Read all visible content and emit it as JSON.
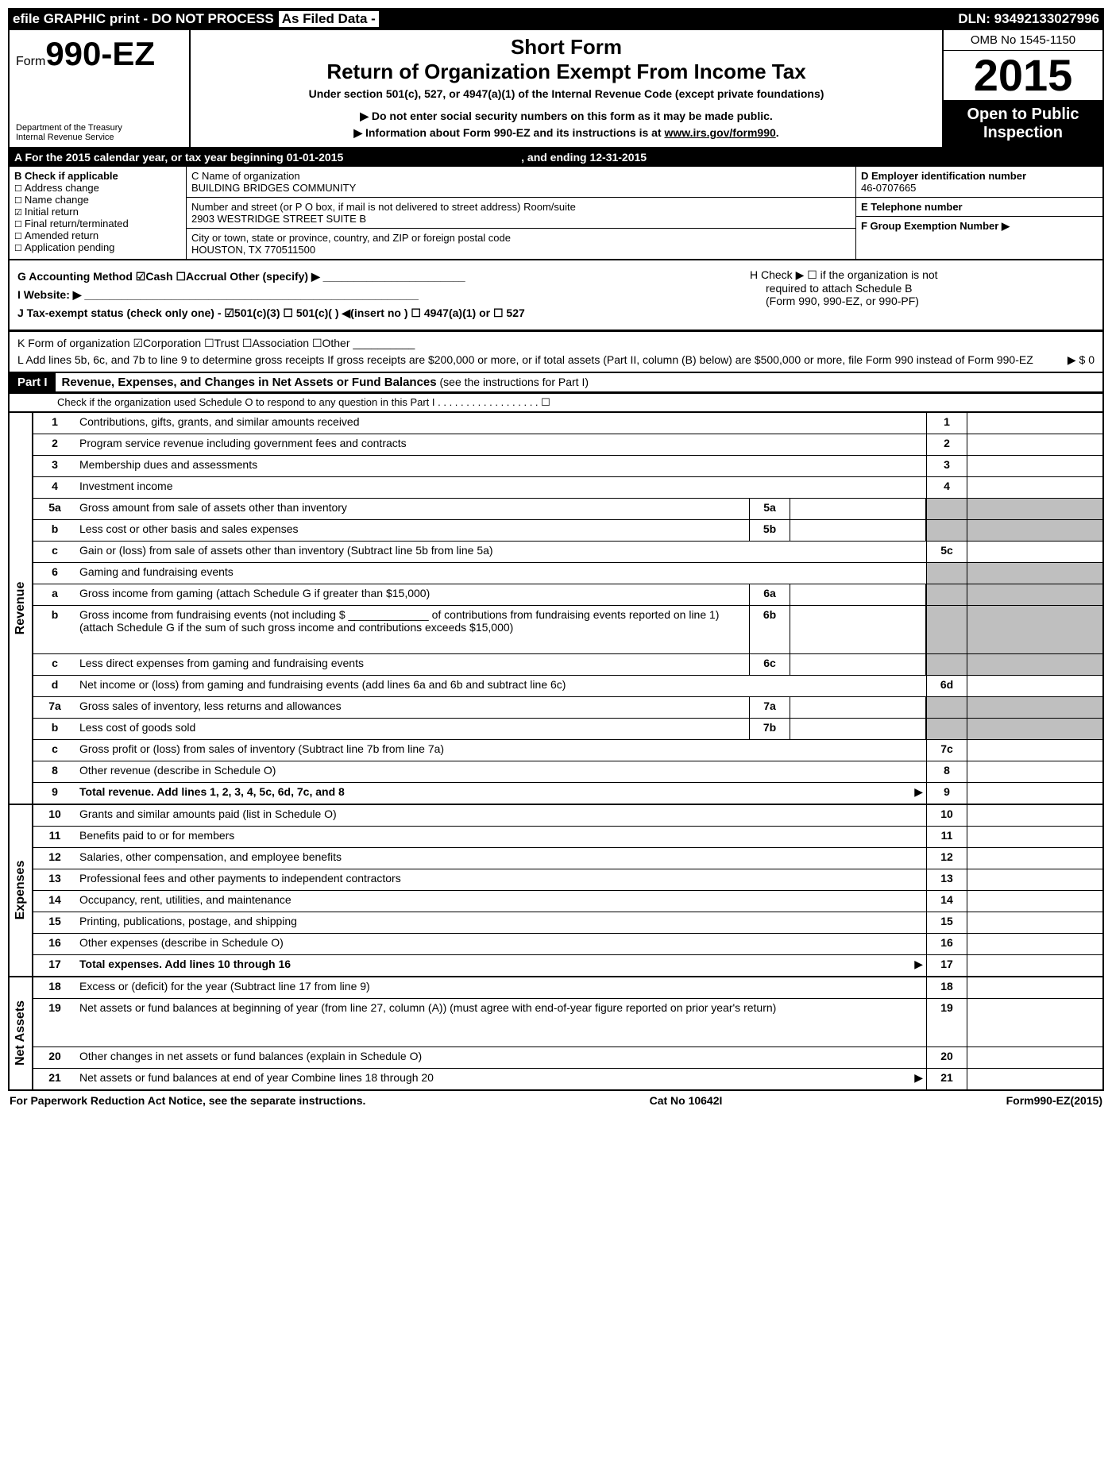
{
  "topbar": {
    "left1": "efile GRAPHIC print - DO NOT PROCESS",
    "left2": "As Filed Data -",
    "right": "DLN: 93492133027996"
  },
  "header": {
    "form_prefix": "Form",
    "form_no": "990-EZ",
    "dept1": "Department of the Treasury",
    "dept2": "Internal Revenue Service",
    "title1": "Short Form",
    "title2": "Return of Organization Exempt From Income Tax",
    "subtitle": "Under section 501(c), 527, or 4947(a)(1) of the Internal Revenue Code (except private foundations)",
    "warn1": "▶ Do not enter social security numbers on this form as it may be made public.",
    "warn2_pre": "▶ Information about Form 990-EZ and its instructions is at ",
    "warn2_link": "www.irs.gov/form990",
    "warn2_post": ".",
    "omb": "OMB No 1545-1150",
    "year": "2015",
    "inspect1": "Open to Public",
    "inspect2": "Inspection"
  },
  "lineA": {
    "text_a": "A  For the 2015 calendar year, or tax year beginning 01-01-2015",
    "text_b": ", and ending 12-31-2015"
  },
  "boxB": {
    "title": "B  Check if applicable",
    "items": [
      "Address change",
      "Name change",
      "Initial return",
      "Final return/terminated",
      "Amended return",
      "Application pending"
    ],
    "checked_idx": 2
  },
  "boxC": {
    "l1_label": "C Name of organization",
    "l1_val": "BUILDING BRIDGES COMMUNITY",
    "l2_label": "Number and street (or P O box, if mail is not delivered to street address) Room/suite",
    "l2_val": "2903 WESTRIDGE STREET SUITE B",
    "l3_label": "City or town, state or province, country, and ZIP or foreign postal code",
    "l3_val": "HOUSTON, TX  770511500"
  },
  "boxD": {
    "d_label": "D Employer identification number",
    "d_val": "46-0707665",
    "e_label": "E Telephone number",
    "e_val": "",
    "f_label": "F Group Exemption Number   ▶",
    "f_val": ""
  },
  "ghij": {
    "g": "G Accounting Method   ☑Cash  ☐Accrual  Other (specify) ▶ _______________________",
    "h1": "H  Check ▶ ☐ if the organization is not",
    "h2": "required to attach Schedule B",
    "h3": "(Form 990, 990-EZ, or 990-PF)",
    "i": "I Website: ▶ ______________________________________________________",
    "j": "J Tax-exempt status (check only one) - ☑501(c)(3) ☐ 501(c)( ) ◀(insert no ) ☐ 4947(a)(1) or ☐ 527"
  },
  "k": "K Form of organization   ☑Corporation  ☐Trust  ☐Association  ☐Other __________",
  "l": "L Add lines 5b, 6c, and 7b to line 9 to determine gross receipts  If gross receipts are $200,000 or more, or if total assets (Part II, column (B) below) are $500,000 or more, file Form 990 instead of Form 990-EZ",
  "l_val": "▶ $ 0",
  "part1": {
    "tag": "Part I",
    "title": "Revenue, Expenses, and Changes in Net Assets or Fund Balances",
    "sub": " (see the instructions for Part I)",
    "check": "Check if the organization used Schedule O to respond to any question in this Part I  .  .  .  .  .  .  .  .  .  .  .  .  .  .  .  .  .  .  ☐"
  },
  "sections": [
    {
      "vlabel": "Revenue",
      "rows": [
        {
          "n": "1",
          "d": "Contributions, gifts, grants, and similar amounts received",
          "r": "1"
        },
        {
          "n": "2",
          "d": "Program service revenue including government fees and contracts",
          "r": "2"
        },
        {
          "n": "3",
          "d": "Membership dues and assessments",
          "r": "3"
        },
        {
          "n": "4",
          "d": "Investment income",
          "r": "4"
        },
        {
          "n": "5a",
          "d": "Gross amount from sale of assets other than inventory",
          "m": "5a",
          "shadeR": true
        },
        {
          "n": "b",
          "d": "Less  cost or other basis and sales expenses",
          "m": "5b",
          "shadeR": true
        },
        {
          "n": "c",
          "d": "Gain or (loss) from sale of assets other than inventory (Subtract line 5b from line 5a)",
          "r": "5c"
        },
        {
          "n": "6",
          "d": "Gaming and fundraising events",
          "shadeR": true,
          "noR": true
        },
        {
          "n": "a",
          "d": "Gross income from gaming (attach Schedule G if greater than $15,000)",
          "m": "6a",
          "shadeR": true
        },
        {
          "n": "b",
          "d": "Gross income from fundraising events (not including $ _____________ of contributions from fundraising events reported on line 1) (attach Schedule G if the sum of such gross income and contributions exceeds $15,000)",
          "m": "6b",
          "shadeR": true,
          "tall": true
        },
        {
          "n": "c",
          "d": "Less  direct expenses from gaming and fundraising events",
          "m": "6c",
          "shadeR": true
        },
        {
          "n": "d",
          "d": "Net income or (loss) from gaming and fundraising events (add lines 6a and 6b and subtract line 6c)",
          "r": "6d"
        },
        {
          "n": "7a",
          "d": "Gross sales of inventory, less returns and allowances",
          "m": "7a",
          "shadeR": true
        },
        {
          "n": "b",
          "d": "Less  cost of goods sold",
          "m": "7b",
          "shadeR": true
        },
        {
          "n": "c",
          "d": "Gross profit or (loss) from sales of inventory (Subtract line 7b from line 7a)",
          "r": "7c"
        },
        {
          "n": "8",
          "d": "Other revenue (describe in Schedule O)",
          "r": "8"
        },
        {
          "n": "9",
          "d": "Total revenue. Add lines 1, 2, 3, 4, 5c, 6d, 7c, and 8",
          "r": "9",
          "bold": true,
          "arrow": true
        }
      ]
    },
    {
      "vlabel": "Expenses",
      "rows": [
        {
          "n": "10",
          "d": "Grants and similar amounts paid (list in Schedule O)",
          "r": "10"
        },
        {
          "n": "11",
          "d": "Benefits paid to or for members",
          "r": "11"
        },
        {
          "n": "12",
          "d": "Salaries, other compensation, and employee benefits",
          "r": "12"
        },
        {
          "n": "13",
          "d": "Professional fees and other payments to independent contractors",
          "r": "13"
        },
        {
          "n": "14",
          "d": "Occupancy, rent, utilities, and maintenance",
          "r": "14"
        },
        {
          "n": "15",
          "d": "Printing, publications, postage, and shipping",
          "r": "15"
        },
        {
          "n": "16",
          "d": "Other expenses (describe in Schedule O)",
          "r": "16"
        },
        {
          "n": "17",
          "d": "Total expenses. Add lines 10 through 16",
          "r": "17",
          "bold": true,
          "arrow": true
        }
      ]
    },
    {
      "vlabel": "Net Assets",
      "rows": [
        {
          "n": "18",
          "d": "Excess or (deficit) for the year (Subtract line 17 from line 9)",
          "r": "18"
        },
        {
          "n": "19",
          "d": "Net assets or fund balances at beginning of year (from line 27, column (A)) (must agree with end-of-year figure reported on prior year's return)",
          "r": "19",
          "tall": true
        },
        {
          "n": "20",
          "d": "Other changes in net assets or fund balances (explain in Schedule O)",
          "r": "20"
        },
        {
          "n": "21",
          "d": "Net assets or fund balances at end of year  Combine lines 18 through 20",
          "r": "21",
          "arrow": true
        }
      ]
    }
  ],
  "footer": {
    "left": "For Paperwork Reduction Act Notice, see the separate instructions.",
    "mid": "Cat No 10642I",
    "right_pre": "Form",
    "right_bold": "990-EZ",
    "right_post": "(2015)"
  }
}
